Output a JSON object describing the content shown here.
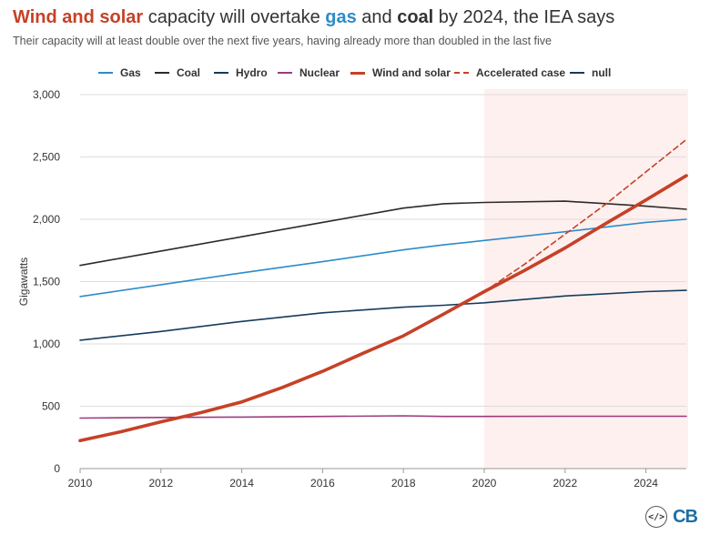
{
  "title": {
    "parts": [
      {
        "text": "Wind and solar",
        "color": "#c64127",
        "bold": true
      },
      {
        "text": " capacity will overtake ",
        "color": "#333333",
        "bold": false
      },
      {
        "text": "gas",
        "color": "#2e8bc8",
        "bold": true
      },
      {
        "text": " and ",
        "color": "#333333",
        "bold": false
      },
      {
        "text": "coal",
        "color": "#333333",
        "bold": true
      },
      {
        "text": " by 2024, the IEA says",
        "color": "#333333",
        "bold": false
      }
    ]
  },
  "subtitle": "Their capacity will at least double over the next five years, having already more than doubled in the last five",
  "footer": {
    "embed_icon": "code-icon",
    "embed_label": "</>",
    "logo_text": "CB"
  },
  "chart_data": {
    "type": "line",
    "ylabel": "Gigawatts",
    "xlabel": "",
    "xlim": [
      2010,
      2025
    ],
    "ylim": [
      0,
      3000
    ],
    "xticks": [
      2010,
      2012,
      2014,
      2016,
      2018,
      2020,
      2022,
      2024
    ],
    "yticks": [
      0,
      500,
      1000,
      1500,
      2000,
      2500,
      3000
    ],
    "ytick_labels": [
      "0",
      "500",
      "1,000",
      "1,500",
      "2,000",
      "2,500",
      "3,000"
    ],
    "grid": "horizontal",
    "legend_position": "top",
    "shaded_region": {
      "x_start": 2020,
      "x_end": 2025,
      "color": "#fdf0ef"
    },
    "series": [
      {
        "name": "Gas",
        "color": "#2e8bc8",
        "style": "solid",
        "width": 1.6,
        "x": [
          2010,
          2012,
          2014,
          2016,
          2018,
          2019,
          2020,
          2022,
          2024,
          2025
        ],
        "values": [
          1380,
          1475,
          1570,
          1660,
          1755,
          1795,
          1830,
          1900,
          1975,
          2000
        ]
      },
      {
        "name": "Coal",
        "color": "#2b2b2b",
        "style": "solid",
        "width": 1.6,
        "x": [
          2010,
          2012,
          2014,
          2016,
          2018,
          2019,
          2020,
          2022,
          2024,
          2025
        ],
        "values": [
          1630,
          1745,
          1860,
          1975,
          2090,
          2125,
          2135,
          2145,
          2105,
          2080
        ]
      },
      {
        "name": "Hydro",
        "color": "#163b5c",
        "style": "solid",
        "width": 1.6,
        "x": [
          2010,
          2012,
          2014,
          2016,
          2018,
          2019,
          2020,
          2022,
          2024,
          2025
        ],
        "values": [
          1030,
          1100,
          1180,
          1250,
          1295,
          1310,
          1330,
          1385,
          1420,
          1430
        ]
      },
      {
        "name": "Nuclear",
        "color": "#9c3b7c",
        "style": "solid",
        "width": 1.6,
        "x": [
          2010,
          2012,
          2014,
          2016,
          2018,
          2019,
          2020,
          2022,
          2024,
          2025
        ],
        "values": [
          405,
          410,
          413,
          418,
          423,
          418,
          418,
          420,
          420,
          420
        ]
      },
      {
        "name": "Wind and solar",
        "color": "#c64127",
        "style": "solid",
        "width": 3.6,
        "x": [
          2010,
          2011,
          2012,
          2013,
          2014,
          2015,
          2016,
          2017,
          2018,
          2019,
          2020,
          2021,
          2022,
          2023,
          2024,
          2025
        ],
        "values": [
          225,
          295,
          375,
          450,
          535,
          650,
          780,
          925,
          1065,
          1240,
          1420,
          1590,
          1770,
          1965,
          2155,
          2350
        ]
      },
      {
        "name": "Accelerated case",
        "color": "#c64127",
        "style": "dashed",
        "width": 1.6,
        "x": [
          2020,
          2021,
          2022,
          2023,
          2024,
          2025
        ],
        "values": [
          1420,
          1640,
          1880,
          2120,
          2380,
          2640
        ]
      },
      {
        "name": "null",
        "color": "#163b5c",
        "style": "solid",
        "width": 1.6,
        "x": [],
        "values": []
      }
    ]
  }
}
